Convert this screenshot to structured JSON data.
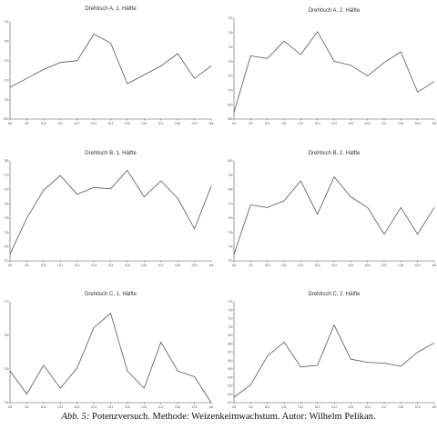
{
  "caption": {
    "prefix": "Abb. 5:",
    "text": "Potenzversuch. Methode: Weizenkeimwachstum. Autor: Wilhelm Pelikan."
  },
  "chart_data": [
    {
      "type": "line",
      "title": "Drehtisch A, 1. Hälfte",
      "x": [
        "D8",
        "D9",
        "D10",
        "D11",
        "D12",
        "D13",
        "D14",
        "D15",
        "D16",
        "D17",
        "D18",
        "D19",
        "W4"
      ],
      "y_ticks": [
        "740",
        "730",
        "720",
        "710",
        "700",
        "690"
      ],
      "ylim": [
        690,
        745
      ],
      "series": [
        {
          "values": [
            708,
            713,
            718,
            722,
            723,
            738,
            733,
            710,
            715,
            720,
            727,
            713,
            720
          ]
        }
      ]
    },
    {
      "type": "line",
      "title": "Drehtisch A, 2. Hälfte",
      "x": [
        "D8",
        "D9",
        "D10",
        "D11",
        "D12",
        "D13",
        "D14",
        "D15",
        "D16",
        "D17",
        "D18",
        "D19",
        "W4"
      ],
      "y_ticks": [
        "750",
        "740",
        "730",
        "720",
        "710",
        "700",
        "690",
        "680"
      ],
      "ylim": [
        680,
        755
      ],
      "series": [
        {
          "values": [
            685,
            727,
            725,
            738,
            728,
            745,
            723,
            720,
            712,
            722,
            730,
            700,
            708
          ]
        }
      ]
    },
    {
      "type": "line",
      "title": "Drehtisch B, 1. Hälfte",
      "x": [
        "D8",
        "D9",
        "D10",
        "D11",
        "D12",
        "D13",
        "D14",
        "D15",
        "D16",
        "D17",
        "D18",
        "D19",
        "W4"
      ],
      "y_ticks": [
        "780",
        "770",
        "760",
        "750",
        "740",
        "730",
        "720",
        "710"
      ],
      "ylim": [
        710,
        785
      ],
      "series": [
        {
          "values": [
            715,
            742,
            763,
            774,
            760,
            765,
            764,
            778,
            758,
            770,
            757,
            734,
            766
          ]
        }
      ]
    },
    {
      "type": "line",
      "title": "Drehtisch B, 2. Hälfte",
      "x": [
        "D8",
        "D9",
        "D10",
        "D11",
        "D12",
        "D13",
        "D14",
        "D15",
        "D16",
        "D17",
        "D18",
        "D19",
        "W4"
      ],
      "y_ticks": [
        "800",
        "790",
        "780",
        "770",
        "760",
        "750",
        "740",
        "730"
      ],
      "ylim": [
        730,
        805
      ],
      "series": [
        {
          "values": [
            735,
            772,
            770,
            775,
            790,
            765,
            793,
            778,
            770,
            750,
            770,
            750,
            770
          ]
        }
      ]
    },
    {
      "type": "line",
      "title": "Drehtisch C, 1. Hälfte",
      "x": [
        "D8",
        "D9",
        "D10",
        "D11",
        "D12",
        "D13",
        "D14",
        "D15",
        "D16",
        "D17",
        "D18",
        "D19",
        "W4"
      ],
      "y_ticks": [
        "770",
        "760",
        "750",
        "740"
      ],
      "ylim": [
        740,
        775
      ],
      "series": [
        {
          "values": [
            751,
            743,
            753,
            745,
            752,
            766,
            771,
            751,
            745,
            761,
            751,
            749,
            740
          ]
        }
      ]
    },
    {
      "type": "line",
      "title": "Drehtisch C, 2. Hälfte",
      "x": [
        "D8",
        "D9",
        "D10",
        "D11",
        "D12",
        "D13",
        "D14",
        "D15",
        "D16",
        "D17",
        "D18",
        "D19",
        "W4"
      ],
      "y_ticks": [
        "730",
        "720",
        "710",
        "700",
        "690",
        "680",
        "670",
        "660",
        "650",
        "640",
        "630",
        "620",
        "610"
      ],
      "ylim": [
        605,
        735
      ],
      "series": [
        {
          "values": [
            612,
            628,
            665,
            683,
            651,
            653,
            705,
            661,
            657,
            656,
            652,
            670,
            682
          ]
        }
      ]
    }
  ]
}
